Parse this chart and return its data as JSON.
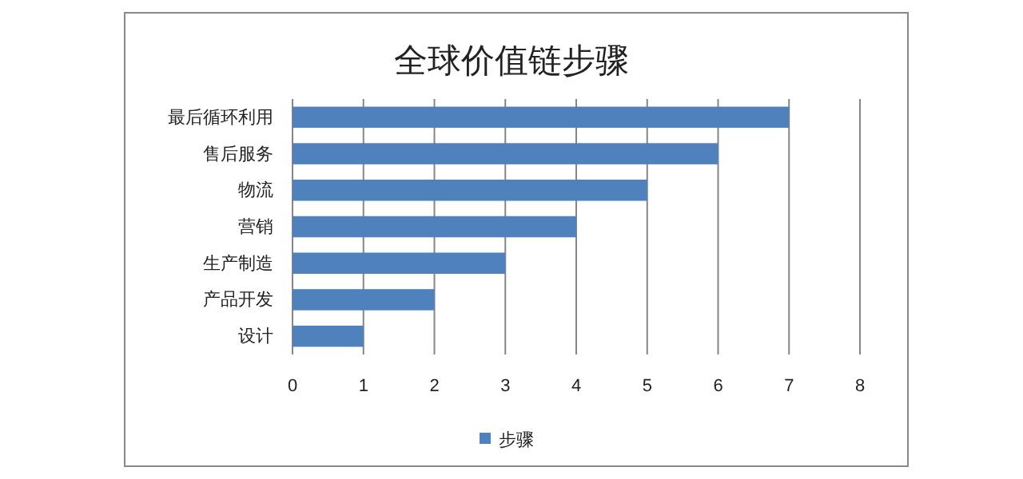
{
  "chart_data": {
    "type": "bar",
    "orientation": "horizontal",
    "title": "全球价值链步骤",
    "categories": [
      "最后循环利用",
      "售后服务",
      "物流",
      "营销",
      "生产制造",
      "产品开发",
      "设计"
    ],
    "series": [
      {
        "name": "步骤",
        "color": "#4f81bd",
        "values": [
          7,
          6,
          5,
          4,
          3,
          2,
          1
        ]
      }
    ],
    "xlim": [
      0,
      8
    ],
    "xticks": [
      0,
      1,
      2,
      3,
      4,
      5,
      6,
      7,
      8
    ],
    "grid": "x",
    "legend": "bottom"
  }
}
